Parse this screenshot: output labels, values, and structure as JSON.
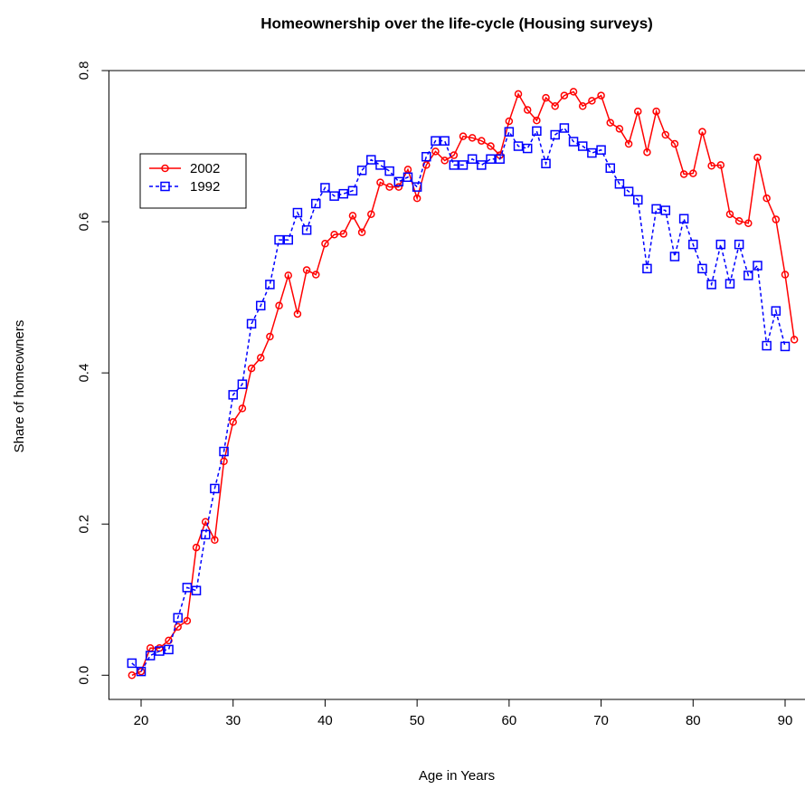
{
  "chart_data": {
    "type": "line",
    "title": "Homeownership over the life-cycle (Housing surveys)",
    "xlabel": "Age in Years",
    "ylabel": "Share of homeowners",
    "x": [
      19,
      20,
      21,
      22,
      23,
      24,
      25,
      26,
      27,
      28,
      29,
      30,
      31,
      32,
      33,
      34,
      35,
      36,
      37,
      38,
      39,
      40,
      41,
      42,
      43,
      44,
      45,
      46,
      47,
      48,
      49,
      50,
      51,
      52,
      53,
      54,
      55,
      56,
      57,
      58,
      59,
      60,
      61,
      62,
      63,
      64,
      65,
      66,
      67,
      68,
      69,
      70,
      71,
      72,
      73,
      74,
      75,
      76,
      77,
      78,
      79,
      80,
      81,
      82,
      83,
      84,
      85,
      86,
      87,
      88,
      89,
      90,
      91
    ],
    "series": [
      {
        "name": "2002",
        "color": "#ff0000",
        "marker": "circle",
        "linestyle": "solid",
        "values": [
          0.0,
          0.005,
          0.036,
          0.036,
          0.046,
          0.064,
          0.072,
          0.169,
          0.203,
          0.179,
          0.283,
          0.335,
          0.353,
          0.406,
          0.42,
          0.448,
          0.489,
          0.529,
          0.478,
          0.536,
          0.53,
          0.571,
          0.583,
          0.584,
          0.608,
          0.586,
          0.61,
          0.652,
          0.646,
          0.646,
          0.669,
          0.631,
          0.675,
          0.693,
          0.681,
          0.688,
          0.713,
          0.711,
          0.707,
          0.7,
          0.688,
          0.733,
          0.769,
          0.748,
          0.734,
          0.764,
          0.753,
          0.767,
          0.772,
          0.753,
          0.76,
          0.767,
          0.731,
          0.723,
          0.703,
          0.746,
          0.692,
          0.746,
          0.715,
          0.703,
          0.663,
          0.664,
          0.719,
          0.674,
          0.675,
          0.61,
          0.601,
          0.598,
          0.685,
          0.631,
          0.603,
          0.53,
          0.444
        ]
      },
      {
        "name": "1992",
        "color": "#0000ff",
        "marker": "square",
        "linestyle": "dashed",
        "values": [
          0.016,
          0.005,
          0.026,
          0.032,
          0.034,
          0.076,
          0.116,
          0.112,
          0.186,
          0.247,
          0.296,
          0.371,
          0.385,
          0.465,
          0.489,
          0.517,
          0.576,
          0.576,
          0.612,
          0.589,
          0.624,
          0.645,
          0.634,
          0.637,
          0.641,
          0.668,
          0.682,
          0.675,
          0.667,
          0.653,
          0.659,
          0.646,
          0.686,
          0.707,
          0.707,
          0.675,
          0.675,
          0.683,
          0.675,
          0.683,
          0.683,
          0.719,
          0.7,
          0.697,
          0.72,
          0.677,
          0.715,
          0.724,
          0.706,
          0.7,
          0.691,
          0.695,
          0.671,
          0.65,
          0.64,
          0.629,
          0.538,
          0.617,
          0.615,
          0.554,
          0.604,
          0.57,
          0.538,
          0.517,
          0.57,
          0.518,
          0.57,
          0.529,
          0.542,
          0.436,
          0.482,
          0.435,
          null
        ]
      }
    ],
    "xlim": [
      16.5,
      93.5
    ],
    "xticks": [
      20,
      30,
      40,
      50,
      60,
      70,
      80,
      90
    ],
    "ylim": [
      -0.032,
      0.8
    ],
    "yticks": [
      {
        "value": 0,
        "label": "0.0"
      },
      0.2,
      0.4,
      0.6,
      0.8
    ],
    "legend": "topleft"
  }
}
